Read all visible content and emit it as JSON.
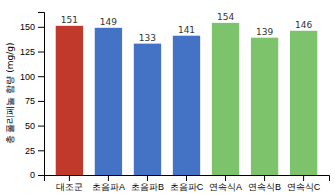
{
  "chart_data": {
    "type": "bar",
    "categories": [
      "대조군",
      "초음파A",
      "초음파B",
      "초음파C",
      "연속식A",
      "연속식B",
      "연속식C"
    ],
    "values": [
      151,
      149,
      133,
      141,
      154,
      139,
      146
    ],
    "colors": [
      "#c0392b",
      "#4472c4",
      "#4472c4",
      "#4472c4",
      "#7dc36b",
      "#7dc36b",
      "#7dc36b"
    ],
    "ylabel": "총 폴리페놀 함량 (mg/g)",
    "ylim": [
      0,
      165
    ],
    "yticks": [
      0,
      25,
      50,
      75,
      100,
      125,
      150
    ],
    "data_labels": true
  }
}
